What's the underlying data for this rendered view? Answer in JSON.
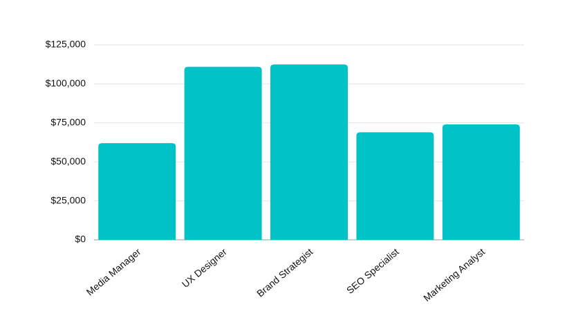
{
  "chart_data": {
    "type": "bar",
    "categories": [
      "Media Manager",
      "UX Designer",
      "Brand Strategist",
      "SEO Specialist",
      "Marketing Analyst"
    ],
    "values": [
      62000,
      111000,
      112500,
      69000,
      74000
    ],
    "color": "#00c2c7",
    "ylim": [
      0,
      125000
    ],
    "yticks": [
      {
        "value": 0,
        "label": "$0"
      },
      {
        "value": 25000,
        "label": "$25,000"
      },
      {
        "value": 50000,
        "label": "$50,000"
      },
      {
        "value": 75000,
        "label": "$75,000"
      },
      {
        "value": 100000,
        "label": "$100,000"
      },
      {
        "value": 125000,
        "label": "$125,000"
      }
    ],
    "grid": true
  }
}
